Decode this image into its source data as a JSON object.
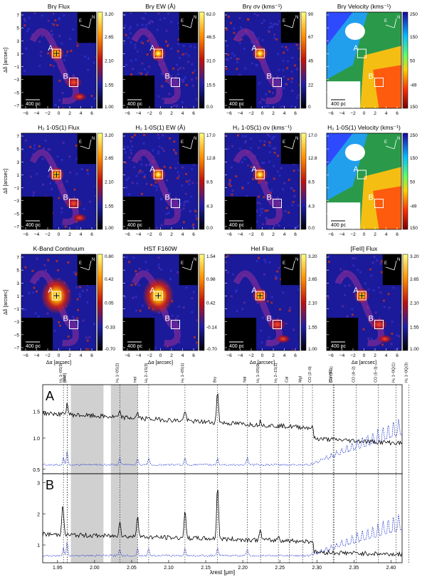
{
  "figure": {
    "panels": [
      {
        "title": "Brγ Flux",
        "cb": [
          "3.20",
          "2.65",
          "2.10",
          "1.55",
          "1.00"
        ],
        "scheme": "heat",
        "label_pos": 0
      },
      {
        "title": "Brγ EW (Å)",
        "cb": [
          "62.0",
          "46.5",
          "31.0",
          "15.5",
          "0.0"
        ],
        "scheme": "heat",
        "label_pos": 1
      },
      {
        "title": "Brγ σv (kms⁻¹)",
        "cb": [
          "90",
          "67",
          "45",
          "22",
          "0"
        ],
        "scheme": "heat",
        "label_pos": 1
      },
      {
        "title": "Brγ Velocity (kms⁻¹)",
        "cb": [
          "250",
          "150",
          "50",
          "-49",
          "150"
        ],
        "scheme": "rainbow",
        "label_pos": 1
      },
      {
        "title": "H₂ 1-0S(1) Flux",
        "cb": [
          "3.20",
          "2.65",
          "2.10",
          "1.55",
          "1.00"
        ],
        "scheme": "heat",
        "label_pos": 0
      },
      {
        "title": "H₂ 1-0S(1) EW (Å)",
        "cb": [
          "17.0",
          "12.8",
          "8.5",
          "4.3",
          "0.0"
        ],
        "scheme": "heat",
        "label_pos": 1
      },
      {
        "title": "H₂ 1-0S(1) σv (kms⁻¹)",
        "cb": [
          "17.0",
          "12.8",
          "8.5",
          "4.3",
          "0.0"
        ],
        "scheme": "heat",
        "label_pos": 1
      },
      {
        "title": "H₂ 1-0S(1) Velocity (kms⁻¹)",
        "cb": [
          "250",
          "150",
          "50",
          "-49",
          "150"
        ],
        "scheme": "rainbow",
        "label_pos": 1
      },
      {
        "title": "K-Band Continuum",
        "cb": [
          "0.80",
          "0.42",
          "0.05",
          "-0.33",
          "-0.70"
        ],
        "scheme": "heat",
        "label_pos": 0
      },
      {
        "title": "HST F160W",
        "cb": [
          "1.54",
          "0.98",
          "0.42",
          "-0.14",
          "-0.70"
        ],
        "scheme": "heat",
        "label_pos": 1
      },
      {
        "title": "HeI Flux",
        "cb": [
          "3.20",
          "2.65",
          "2.10",
          "1.55",
          "1.00"
        ],
        "scheme": "heat",
        "label_pos": 1
      },
      {
        "title": "[FeII] Flux",
        "cb": [
          "3.20",
          "2.65",
          "2.10",
          "1.55",
          "1.00"
        ],
        "scheme": "heat",
        "label_pos": 1
      }
    ],
    "map_axes": {
      "xlabel": "Δα [arcsec]",
      "ylabel": "Δδ [arcsec]",
      "xticks": [
        "−6",
        "−4",
        "−2",
        "0",
        "2",
        "4",
        "6"
      ],
      "yticks": [
        "7",
        "5",
        "3",
        "1",
        "−1",
        "−3",
        "−5",
        "−7"
      ],
      "scale_label": "400 pc",
      "north": "N",
      "east": "E",
      "region_a": "A",
      "region_b": "B"
    },
    "spectrum": {
      "xlabel": "λrest [μm]",
      "xticks": [
        "1.95",
        "2.00",
        "2.05",
        "2.10",
        "2.15",
        "2.20",
        "2.25",
        "2.30",
        "2.35",
        "2.40"
      ],
      "panel_a": {
        "label": "A",
        "yticks": [
          "1.5",
          "1.0",
          "0.5"
        ]
      },
      "panel_b": {
        "label": "B",
        "yticks": [
          "3",
          "2",
          "1"
        ]
      },
      "lines": [
        {
          "label": "SiVI",
          "x": 1.963
        },
        {
          "label": "H₂ 1−0S(3)",
          "x": 1.958
        },
        {
          "label": "[SiVI]",
          "x": 1.963
        },
        {
          "label": "H₂ 1−0S(2)",
          "x": 2.034
        },
        {
          "label": "HeI",
          "x": 2.058
        },
        {
          "label": "H₂ 2−1S(3)",
          "x": 2.073
        },
        {
          "label": "H₂ 1−0S(1)",
          "x": 2.122
        },
        {
          "label": "Brγ",
          "x": 2.166
        },
        {
          "label": "NaI",
          "x": 2.206
        },
        {
          "label": "H₂ 1−0S(0)",
          "x": 2.224
        },
        {
          "label": "H₂ 2−1S(1)",
          "x": 2.248
        },
        {
          "label": "CaI",
          "x": 2.263
        },
        {
          "label": "MgI",
          "x": 2.281
        },
        {
          "label": "CO (2−0)",
          "x": 2.294
        },
        {
          "label": "[CaVIII]",
          "x": 2.322
        },
        {
          "label": "CO (3−1)",
          "x": 2.323
        },
        {
          "label": "CO (4−2)",
          "x": 2.353
        },
        {
          "label": "CO (5−3)",
          "x": 2.383
        },
        {
          "label": "H₂ 1−0Q(1)",
          "x": 2.407
        },
        {
          "label": "H₂ 1−0Q(3)",
          "x": 2.424
        }
      ]
    }
  }
}
